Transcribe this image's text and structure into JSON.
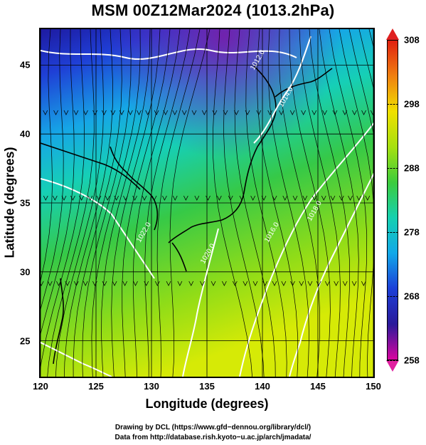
{
  "title": "MSM 00Z12Mar2024 (1013.2hPa)",
  "xaxis": {
    "label": "Longitude (degrees)",
    "ticks": [
      "120",
      "125",
      "130",
      "135",
      "140",
      "145",
      "150"
    ],
    "range": [
      120,
      150
    ]
  },
  "yaxis": {
    "label": "Latitude  (degrees)",
    "ticks": [
      "25",
      "30",
      "35",
      "40",
      "45"
    ],
    "range": [
      22.4,
      47.6
    ]
  },
  "colorbar": {
    "ticks": [
      "308",
      "298",
      "288",
      "278",
      "268",
      "258"
    ],
    "range": [
      258,
      308
    ],
    "colors": [
      "#d8059f",
      "#2a1a9a",
      "#1c3fd8",
      "#12a8e8",
      "#16d0b0",
      "#3ccc3c",
      "#a6e010",
      "#f0e000",
      "#f08010",
      "#e02010"
    ]
  },
  "contour_labels": [
    "1012.0",
    "1014.0",
    "1016.0",
    "1018.0",
    "1020.0",
    "1022.0"
  ],
  "credits": [
    "Drawing by DCL (https://www.gfd−dennou.org/library/dcl/)",
    "Data from http://database.rish.kyoto−u.ac.jp/arch/jmadata/"
  ]
}
